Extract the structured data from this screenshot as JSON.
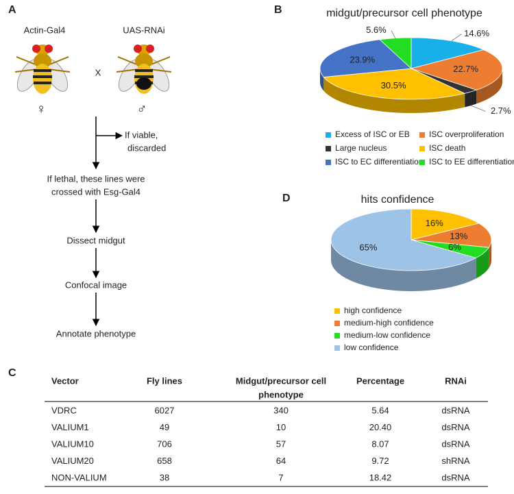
{
  "panel_labels": [
    "A",
    "B",
    "C",
    "D"
  ],
  "flowchart": {
    "parents": [
      {
        "label": "Actin-Gal4",
        "sex": "♀"
      },
      {
        "label": "UAS-RNAi",
        "sex": "♂"
      }
    ],
    "cross": "X",
    "branch": [
      "If viable,",
      "discarded"
    ],
    "steps": [
      [
        "If lethal, these lines were",
        "crossed with Esg-Gal4"
      ],
      [
        "Dissect midgut"
      ],
      [
        "Confocal image"
      ],
      [
        "Annotate phenotype"
      ]
    ]
  },
  "chart_data": [
    {
      "type": "pie",
      "title": "midgut/precursor cell phenotype",
      "categories": [
        "Excess of ISC or EB",
        "ISC overproliferation",
        "Large nucleus",
        "ISC death",
        "ISC to EC differentiation",
        "ISC to EE differentiation"
      ],
      "values": [
        14.6,
        22.7,
        2.7,
        30.5,
        23.9,
        5.6
      ],
      "value_labels": [
        "14.6%",
        "22.7%",
        "2.7%",
        "30.5%",
        "23.9%",
        "5.6%"
      ],
      "colors": [
        "#19b0ea",
        "#ed7d31",
        "#333333",
        "#ffc000",
        "#4472c4",
        "#22dd22"
      ]
    },
    {
      "type": "pie",
      "title": "hits confidence",
      "categories": [
        "high confidence",
        "medium-high confidence",
        "medium-low confidence",
        "low confidence"
      ],
      "values": [
        16,
        13,
        6,
        65
      ],
      "value_labels": [
        "16%",
        "13%",
        "6%",
        "65%"
      ],
      "colors": [
        "#ffc000",
        "#ed7d31",
        "#22dd22",
        "#9dc3e6"
      ]
    }
  ],
  "table": {
    "header": [
      [
        "Vector"
      ],
      [
        "Fly lines"
      ],
      [
        "Midgut/precursor cell",
        "phenotype"
      ],
      [
        "Percentage"
      ],
      [
        "RNAi"
      ]
    ],
    "rows": [
      [
        "VDRC",
        "6027",
        "340",
        "5.64",
        "dsRNA"
      ],
      [
        "VALIUM1",
        "49",
        "10",
        "20.40",
        "dsRNA"
      ],
      [
        "VALIUM10",
        "706",
        "57",
        "8.07",
        "dsRNA"
      ],
      [
        "VALIUM20",
        "658",
        "64",
        "9.72",
        "shRNA"
      ],
      [
        "NON-VALIUM",
        "38",
        "7",
        "18.42",
        "dsRNA"
      ]
    ]
  }
}
